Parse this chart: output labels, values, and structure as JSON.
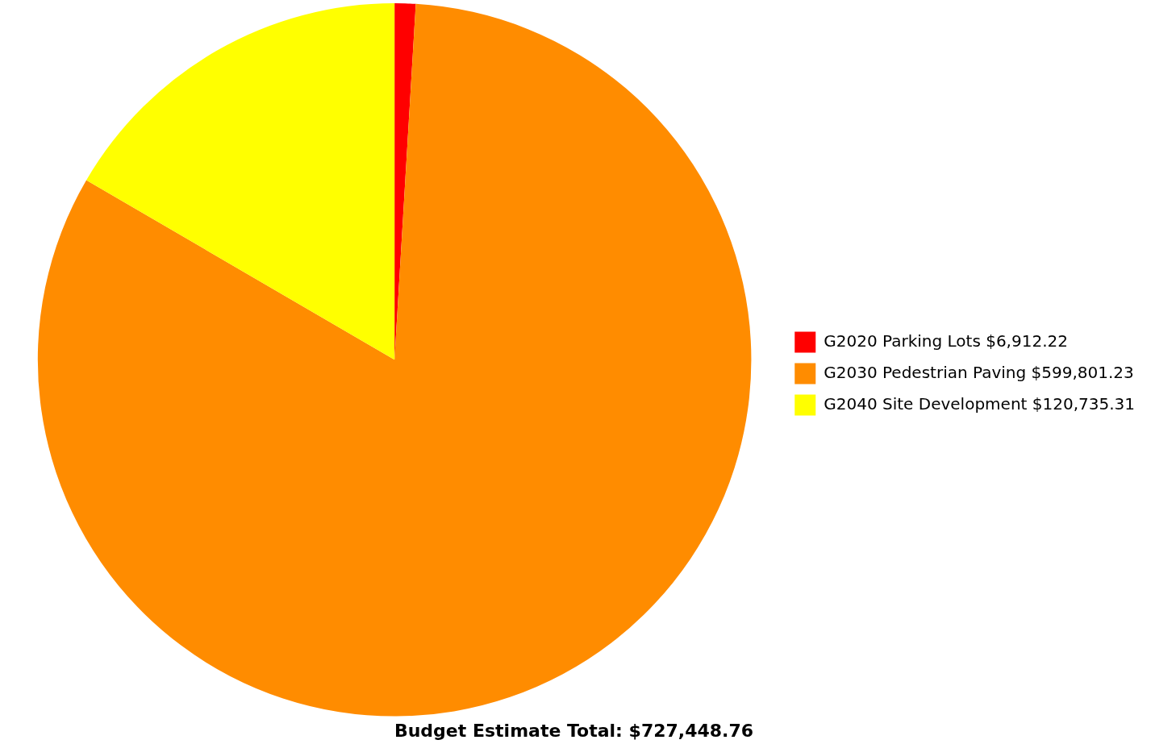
{
  "chart_data": {
    "type": "pie",
    "title": "Budget Estimate Total: $727,448.76",
    "categories": [
      "G2020 Parking Lots",
      "G2030 Pedestrian Paving",
      "G2040 Site Development"
    ],
    "values": [
      6912.22,
      599801.23,
      120735.31
    ],
    "value_labels": [
      "$6,912.22",
      "$599,801.23",
      "$120,735.31"
    ],
    "colors": [
      "#ff0000",
      "#ff8c00",
      "#ffff00"
    ],
    "legend": "right"
  }
}
